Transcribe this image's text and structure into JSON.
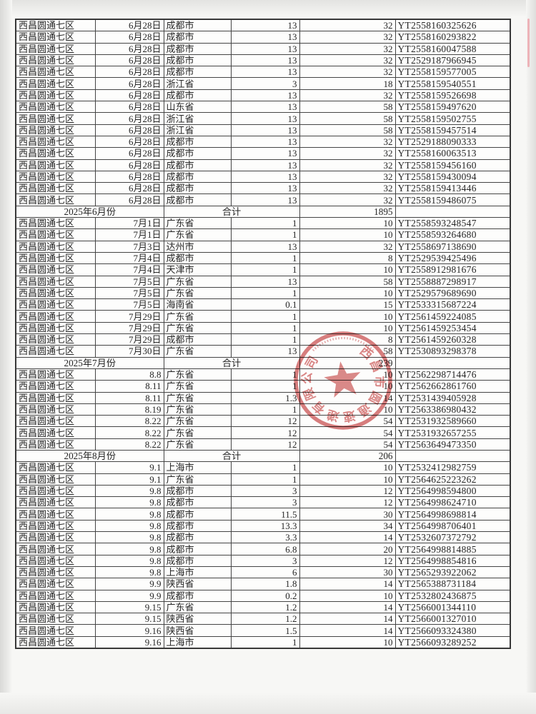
{
  "table": {
    "rows": [
      {
        "t": "d",
        "c": [
          "西昌圆通七区",
          "6月28日",
          "成都市",
          "13",
          "32",
          "YT2558160325626"
        ]
      },
      {
        "t": "d",
        "c": [
          "西昌圆通七区",
          "6月28日",
          "成都市",
          "13",
          "32",
          "YT2558160293822"
        ]
      },
      {
        "t": "d",
        "c": [
          "西昌圆通七区",
          "6月28日",
          "成都市",
          "13",
          "32",
          "YT2558160047588"
        ]
      },
      {
        "t": "d",
        "c": [
          "西昌圆通七区",
          "6月28日",
          "成都市",
          "13",
          "32",
          "YT2529187966945"
        ]
      },
      {
        "t": "d",
        "c": [
          "西昌圆通七区",
          "6月28日",
          "成都市",
          "13",
          "32",
          "YT2558159577005"
        ]
      },
      {
        "t": "d",
        "c": [
          "西昌圆通七区",
          "6月28日",
          "浙江省",
          "3",
          "18",
          "YT2558159540551"
        ]
      },
      {
        "t": "d",
        "c": [
          "西昌圆通七区",
          "6月28日",
          "成都市",
          "13",
          "32",
          "YT2558159526698"
        ]
      },
      {
        "t": "d",
        "c": [
          "西昌圆通七区",
          "6月28日",
          "山东省",
          "13",
          "58",
          "YT2558159497620"
        ]
      },
      {
        "t": "d",
        "c": [
          "西昌圆通七区",
          "6月28日",
          "浙江省",
          "13",
          "58",
          "YT2558159502755"
        ]
      },
      {
        "t": "d",
        "c": [
          "西昌圆通七区",
          "6月28日",
          "浙江省",
          "13",
          "58",
          "YT2558159457514"
        ]
      },
      {
        "t": "d",
        "c": [
          "西昌圆通七区",
          "6月28日",
          "成都市",
          "13",
          "32",
          "YT2529188090333"
        ]
      },
      {
        "t": "d",
        "c": [
          "西昌圆通七区",
          "6月28日",
          "成都市",
          "13",
          "32",
          "YT2558160063513"
        ]
      },
      {
        "t": "d",
        "c": [
          "西昌圆通七区",
          "6月28日",
          "成都市",
          "13",
          "32",
          "YT2558159456160"
        ]
      },
      {
        "t": "d",
        "c": [
          "西昌圆通七区",
          "6月28日",
          "成都市",
          "13",
          "32",
          "YT2558159430094"
        ]
      },
      {
        "t": "d",
        "c": [
          "西昌圆通七区",
          "6月28日",
          "成都市",
          "13",
          "32",
          "YT2558159413446"
        ]
      },
      {
        "t": "d",
        "c": [
          "西昌圆通七区",
          "6月28日",
          "成都市",
          "13",
          "32",
          "YT2558159486075"
        ]
      },
      {
        "t": "s",
        "c": [
          "2025年6月份",
          "合计",
          "1895"
        ]
      },
      {
        "t": "d",
        "c": [
          "西昌圆通七区",
          "7月1日",
          "广东省",
          "1",
          "10",
          "YT2558593248547"
        ]
      },
      {
        "t": "d",
        "c": [
          "西昌圆通七区",
          "7月1日",
          "广东省",
          "1",
          "10",
          "YT2558593264680"
        ]
      },
      {
        "t": "d",
        "c": [
          "西昌圆通七区",
          "7月3日",
          "达州市",
          "13",
          "32",
          "YT2558697138690"
        ]
      },
      {
        "t": "d",
        "c": [
          "西昌圆通七区",
          "7月4日",
          "成都市",
          "1",
          "8",
          "YT2529539425496"
        ]
      },
      {
        "t": "d",
        "c": [
          "西昌圆通七区",
          "7月4日",
          "天津市",
          "1",
          "10",
          "YT2558912981676"
        ]
      },
      {
        "t": "d",
        "c": [
          "西昌圆通七区",
          "7月5日",
          "广东省",
          "13",
          "58",
          "YT2558887298917"
        ]
      },
      {
        "t": "d",
        "c": [
          "西昌圆通七区",
          "7月5日",
          "广东省",
          "1",
          "10",
          "YT2529579689690"
        ]
      },
      {
        "t": "d",
        "c": [
          "西昌圆通七区",
          "7月5日",
          "海南省",
          "0.1",
          "15",
          "YT2533315687224"
        ]
      },
      {
        "t": "d",
        "c": [
          "西昌圆通七区",
          "7月29日",
          "广东省",
          "1",
          "10",
          "YT2561459224085"
        ]
      },
      {
        "t": "d",
        "c": [
          "西昌圆通七区",
          "7月29日",
          "广东省",
          "1",
          "10",
          "YT2561459253454"
        ]
      },
      {
        "t": "d",
        "c": [
          "西昌圆通七区",
          "7月29日",
          "成都市",
          "1",
          "8",
          "YT2561459260328"
        ]
      },
      {
        "t": "d",
        "c": [
          "西昌圆通七区",
          "7月30日",
          "广东省",
          "13",
          "58",
          "YT2530893298378"
        ]
      },
      {
        "t": "s",
        "c": [
          "2025年7月份",
          "合计",
          "239"
        ]
      },
      {
        "t": "d",
        "c": [
          "西昌圆通七区",
          "8.8",
          "广东省",
          "1",
          "10",
          "YT2562298714476"
        ]
      },
      {
        "t": "d",
        "c": [
          "西昌圆通七区",
          "8.11",
          "广东省",
          "1",
          "10",
          "YT2562662861760"
        ]
      },
      {
        "t": "d",
        "c": [
          "西昌圆通七区",
          "8.11",
          "广东省",
          "1.3",
          "14",
          "YT2531439405928"
        ]
      },
      {
        "t": "d",
        "c": [
          "西昌圆通七区",
          "8.19",
          "广东省",
          "1",
          "10",
          "YT2563386980432"
        ]
      },
      {
        "t": "d",
        "c": [
          "西昌圆通七区",
          "8.22",
          "广东省",
          "12",
          "54",
          "YT2531932589660"
        ]
      },
      {
        "t": "d",
        "c": [
          "西昌圆通七区",
          "8.22",
          "广东省",
          "12",
          "54",
          "YT2531932657255"
        ]
      },
      {
        "t": "d",
        "c": [
          "西昌圆通七区",
          "8.22",
          "广东省",
          "12",
          "54",
          "YT2563649473350"
        ]
      },
      {
        "t": "s",
        "c": [
          "2025年8月份",
          "合计",
          "206"
        ]
      },
      {
        "t": "d",
        "c": [
          "西昌圆通七区",
          "9.1",
          "上海市",
          "1",
          "10",
          "YT2532412982759"
        ]
      },
      {
        "t": "d",
        "c": [
          "西昌圆通七区",
          "9.1",
          "广东省",
          "1",
          "10",
          "YT2564625223262"
        ]
      },
      {
        "t": "d",
        "c": [
          "西昌圆通七区",
          "9.8",
          "成都市",
          "3",
          "12",
          "YT2564998594800"
        ]
      },
      {
        "t": "d",
        "c": [
          "西昌圆通七区",
          "9.8",
          "成都市",
          "3",
          "12",
          "YT2564998624710"
        ]
      },
      {
        "t": "d",
        "c": [
          "西昌圆通七区",
          "9.8",
          "成都市",
          "11.5",
          "30",
          "YT2564998698814"
        ]
      },
      {
        "t": "d",
        "c": [
          "西昌圆通七区",
          "9.8",
          "成都市",
          "13.3",
          "34",
          "YT2564998706401"
        ]
      },
      {
        "t": "d",
        "c": [
          "西昌圆通七区",
          "9.8",
          "成都市",
          "3.3",
          "14",
          "YT2532607372792"
        ]
      },
      {
        "t": "d",
        "c": [
          "西昌圆通七区",
          "9.8",
          "成都市",
          "6.8",
          "20",
          "YT2564998814885"
        ]
      },
      {
        "t": "d",
        "c": [
          "西昌圆通七区",
          "9.8",
          "成都市",
          "3",
          "12",
          "YT2564998854816"
        ]
      },
      {
        "t": "d",
        "c": [
          "西昌圆通七区",
          "9.8",
          "上海市",
          "6",
          "30",
          "YT2565293922062"
        ]
      },
      {
        "t": "d",
        "c": [
          "西昌圆通七区",
          "9.9",
          "陕西省",
          "1.8",
          "14",
          "YT2565388731184"
        ]
      },
      {
        "t": "d",
        "c": [
          "西昌圆通七区",
          "9.9",
          "成都市",
          "0.2",
          "10",
          "YT2532802436875"
        ]
      },
      {
        "t": "d",
        "c": [
          "西昌圆通七区",
          "9.15",
          "广东省",
          "1.2",
          "14",
          "YT2566001344110"
        ]
      },
      {
        "t": "d",
        "c": [
          "西昌圆通七区",
          "9.15",
          "陕西省",
          "1.2",
          "14",
          "YT2566001327010"
        ]
      },
      {
        "t": "d",
        "c": [
          "西昌圆通七区",
          "9.16",
          "陕西省",
          "1.5",
          "14",
          "YT2566093324380"
        ]
      },
      {
        "t": "d",
        "c": [
          "西昌圆通七区",
          "9.16",
          "上海市",
          "1",
          "10",
          "YT2566093289252"
        ]
      }
    ]
  },
  "stamp": {
    "color": "#c84a4a",
    "center_symbol": "star",
    "arc_text_approx": "西昌市圆通速递有限公司"
  }
}
